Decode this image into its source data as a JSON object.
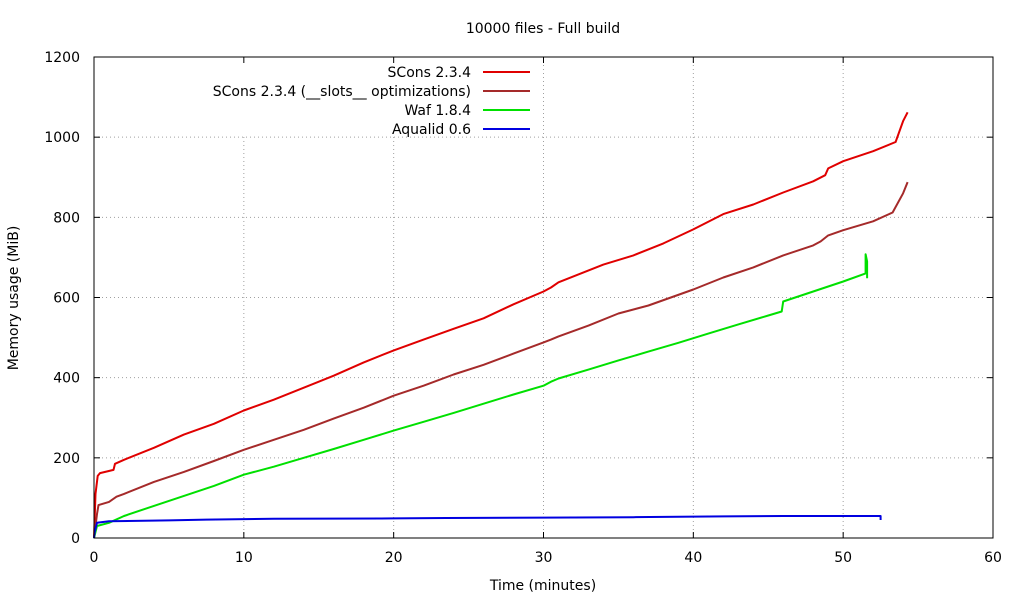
{
  "chart_data": {
    "type": "line",
    "title": "10000 files - Full build",
    "xlabel": "Time (minutes)",
    "ylabel": "Memory usage (MiB)",
    "xlim": [
      0,
      60
    ],
    "ylim": [
      0,
      1200
    ],
    "xticks": [
      0,
      10,
      20,
      30,
      40,
      50,
      60
    ],
    "yticks": [
      0,
      200,
      400,
      600,
      800,
      1000,
      1200
    ],
    "grid": true,
    "legend_position": "top-left",
    "series": [
      {
        "name": "SCons 2.3.4",
        "color": "#e00000",
        "points": [
          [
            0,
            0
          ],
          [
            0.1,
            110
          ],
          [
            0.25,
            155
          ],
          [
            0.4,
            162
          ],
          [
            1.3,
            170
          ],
          [
            1.4,
            185
          ],
          [
            2,
            195
          ],
          [
            4,
            225
          ],
          [
            6,
            258
          ],
          [
            8,
            285
          ],
          [
            10,
            318
          ],
          [
            12,
            345
          ],
          [
            14,
            375
          ],
          [
            16,
            405
          ],
          [
            18,
            438
          ],
          [
            20,
            468
          ],
          [
            22,
            495
          ],
          [
            24,
            522
          ],
          [
            26,
            548
          ],
          [
            28,
            583
          ],
          [
            30,
            615
          ],
          [
            30.5,
            625
          ],
          [
            31,
            638
          ],
          [
            34,
            682
          ],
          [
            36,
            705
          ],
          [
            38,
            735
          ],
          [
            40,
            770
          ],
          [
            42,
            808
          ],
          [
            44,
            832
          ],
          [
            46,
            862
          ],
          [
            48,
            890
          ],
          [
            48.8,
            905
          ],
          [
            49,
            922
          ],
          [
            50,
            940
          ],
          [
            52,
            965
          ],
          [
            53.5,
            988
          ],
          [
            54,
            1040
          ],
          [
            54.3,
            1062
          ]
        ]
      },
      {
        "name": "SCons 2.3.4 (__slots__ optimizations)",
        "color": "#a52a2a",
        "points": [
          [
            0,
            0
          ],
          [
            0.2,
            60
          ],
          [
            0.3,
            82
          ],
          [
            1,
            90
          ],
          [
            1.5,
            103
          ],
          [
            2,
            110
          ],
          [
            4,
            140
          ],
          [
            6,
            165
          ],
          [
            8,
            192
          ],
          [
            10,
            220
          ],
          [
            12,
            245
          ],
          [
            14,
            270
          ],
          [
            16,
            298
          ],
          [
            18,
            325
          ],
          [
            20,
            355
          ],
          [
            22,
            380
          ],
          [
            24,
            408
          ],
          [
            26,
            432
          ],
          [
            28,
            460
          ],
          [
            30,
            488
          ],
          [
            30.5,
            495
          ],
          [
            31,
            503
          ],
          [
            33,
            530
          ],
          [
            35,
            560
          ],
          [
            37,
            580
          ],
          [
            40,
            620
          ],
          [
            42,
            650
          ],
          [
            44,
            675
          ],
          [
            46,
            705
          ],
          [
            48,
            730
          ],
          [
            48.5,
            740
          ],
          [
            49,
            755
          ],
          [
            50,
            768
          ],
          [
            52,
            790
          ],
          [
            53.3,
            812
          ],
          [
            54,
            860
          ],
          [
            54.3,
            888
          ]
        ]
      },
      {
        "name": "Waf 1.8.4",
        "color": "#00e000",
        "points": [
          [
            0,
            0
          ],
          [
            0.2,
            30
          ],
          [
            1,
            38
          ],
          [
            2,
            55
          ],
          [
            4,
            80
          ],
          [
            6,
            105
          ],
          [
            8,
            130
          ],
          [
            10,
            158
          ],
          [
            12,
            178
          ],
          [
            14,
            200
          ],
          [
            16,
            222
          ],
          [
            18,
            245
          ],
          [
            20,
            268
          ],
          [
            22,
            290
          ],
          [
            24,
            312
          ],
          [
            26,
            335
          ],
          [
            28,
            358
          ],
          [
            30,
            380
          ],
          [
            30.5,
            390
          ],
          [
            31,
            398
          ],
          [
            33,
            420
          ],
          [
            35,
            443
          ],
          [
            37,
            465
          ],
          [
            39,
            487
          ],
          [
            41,
            510
          ],
          [
            43,
            533
          ],
          [
            45,
            555
          ],
          [
            45.9,
            565
          ],
          [
            46,
            590
          ],
          [
            48,
            615
          ],
          [
            50,
            640
          ],
          [
            51.5,
            660
          ],
          [
            51.5,
            708
          ],
          [
            51.6,
            690
          ],
          [
            51.6,
            648
          ]
        ]
      },
      {
        "name": "Aqualid 0.6",
        "color": "#0000e0",
        "points": [
          [
            0,
            0
          ],
          [
            0.05,
            15
          ],
          [
            0.2,
            38
          ],
          [
            1,
            42
          ],
          [
            5,
            44
          ],
          [
            7.5,
            46
          ],
          [
            12,
            48
          ],
          [
            20,
            49
          ],
          [
            23.5,
            50
          ],
          [
            30,
            51
          ],
          [
            36,
            52
          ],
          [
            42,
            54
          ],
          [
            46,
            55
          ],
          [
            50,
            55
          ],
          [
            52.5,
            55
          ],
          [
            52.5,
            45
          ]
        ]
      }
    ]
  }
}
